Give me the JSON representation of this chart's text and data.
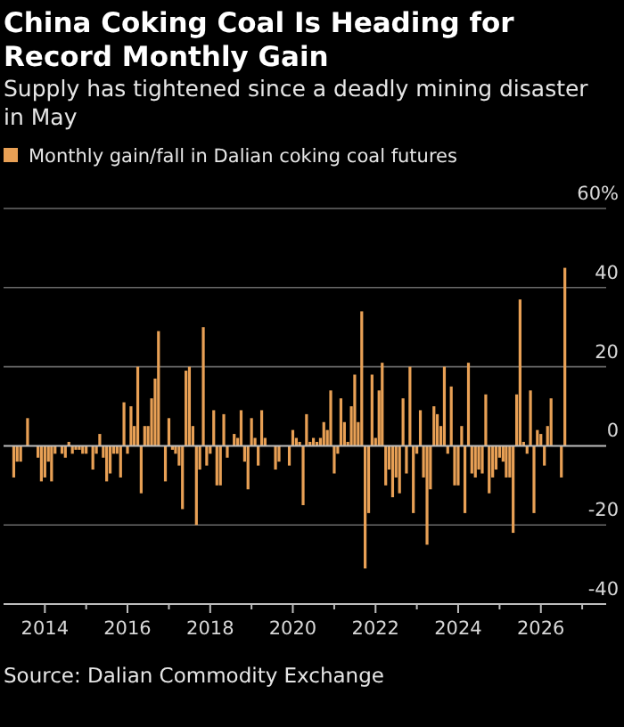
{
  "chart_data": {
    "type": "bar",
    "title": "China Coking Coal Is Heading for Record Monthly Gain",
    "subtitle": "Supply has tightened since a deadly mining disaster in May",
    "x": [
      "2013-04",
      "2013-05",
      "2013-06",
      "2013-07",
      "2013-08",
      "2013-09",
      "2013-10",
      "2013-11",
      "2013-12",
      "2014-01",
      "2014-02",
      "2014-03",
      "2014-04",
      "2014-05",
      "2014-06",
      "2014-07",
      "2014-08",
      "2014-09",
      "2014-10",
      "2014-11",
      "2014-12",
      "2015-01",
      "2015-02",
      "2015-03",
      "2015-04",
      "2015-05",
      "2015-06",
      "2015-07",
      "2015-08",
      "2015-09",
      "2015-10",
      "2015-11",
      "2015-12",
      "2016-01",
      "2016-02",
      "2016-03",
      "2016-04",
      "2016-05",
      "2016-06",
      "2016-07",
      "2016-08",
      "2016-09",
      "2016-10",
      "2016-11",
      "2016-12",
      "2017-01",
      "2017-02",
      "2017-03",
      "2017-04",
      "2017-05",
      "2017-06",
      "2017-07",
      "2017-08",
      "2017-09",
      "2017-10",
      "2017-11",
      "2017-12",
      "2018-01",
      "2018-02",
      "2018-03",
      "2018-04",
      "2018-05",
      "2018-06",
      "2018-07",
      "2018-08",
      "2018-09",
      "2018-10",
      "2018-11",
      "2018-12",
      "2019-01",
      "2019-02",
      "2019-03",
      "2019-04",
      "2019-05",
      "2019-06",
      "2019-07",
      "2019-08",
      "2019-09",
      "2019-10",
      "2019-11",
      "2019-12",
      "2020-01",
      "2020-02",
      "2020-03",
      "2020-04",
      "2020-05",
      "2020-06",
      "2020-07",
      "2020-08",
      "2020-09",
      "2020-10",
      "2020-11",
      "2020-12",
      "2021-01",
      "2021-02",
      "2021-03",
      "2021-04",
      "2021-05",
      "2021-06",
      "2021-07",
      "2021-08",
      "2021-09",
      "2021-10",
      "2021-11",
      "2021-12",
      "2022-01",
      "2022-02",
      "2022-03",
      "2022-04",
      "2022-05",
      "2022-06",
      "2022-07",
      "2022-08",
      "2022-09",
      "2022-10",
      "2022-11",
      "2022-12",
      "2023-01",
      "2023-02",
      "2023-03",
      "2023-04",
      "2023-05",
      "2023-06",
      "2023-07",
      "2023-08",
      "2023-09",
      "2023-10",
      "2023-11",
      "2023-12",
      "2024-01",
      "2024-02",
      "2024-03",
      "2024-04",
      "2024-05",
      "2024-06",
      "2024-07",
      "2024-08",
      "2024-09",
      "2024-10",
      "2024-11",
      "2024-12",
      "2025-01",
      "2025-02",
      "2025-03",
      "2025-04",
      "2025-05",
      "2025-06",
      "2025-07",
      "2025-08",
      "2025-09",
      "2025-10",
      "2025-11",
      "2025-12",
      "2026-01",
      "2026-02",
      "2026-03",
      "2026-04",
      "2026-05",
      "2026-06",
      "2026-07",
      "2026-08"
    ],
    "series": [
      {
        "name": "Monthly gain/fall in Dalian coking coal futures",
        "color": "#e8a055",
        "values": [
          -8,
          -4,
          -4,
          0,
          7,
          0,
          0,
          -3,
          -9,
          -8,
          -4,
          -9,
          -2,
          0,
          -2,
          -3,
          1,
          -2,
          -1,
          -1,
          -2,
          -2,
          0,
          -6,
          -2,
          3,
          -3,
          -9,
          -7,
          -2,
          -2,
          -8,
          11,
          -2,
          10,
          5,
          20,
          -12,
          5,
          5,
          12,
          17,
          29,
          0,
          -9,
          7,
          -1,
          -2,
          -5,
          -16,
          19,
          20,
          5,
          -20,
          -6,
          30,
          -5,
          -2,
          9,
          -10,
          -10,
          8,
          -3,
          0,
          3,
          2,
          9,
          -4,
          -11,
          7,
          2,
          -5,
          9,
          2,
          0,
          0,
          -6,
          -4,
          0,
          0,
          -5,
          4,
          2,
          1,
          -15,
          8,
          1,
          2,
          1,
          2,
          6,
          4,
          14,
          -7,
          -2,
          12,
          6,
          1,
          10,
          18,
          6,
          34,
          -31,
          -17,
          18,
          2,
          14,
          21,
          -10,
          -6,
          -13,
          -8,
          -12,
          12,
          -7,
          20,
          -17,
          -2,
          9,
          -8,
          -25,
          -11,
          10,
          8,
          5,
          20,
          -2,
          15,
          -10,
          -10,
          5,
          -17,
          21,
          -7,
          -8,
          -6,
          -7,
          13,
          -12,
          -8,
          -6,
          -3,
          -4,
          -8,
          -8,
          -22,
          13,
          37,
          1,
          -2,
          14,
          -17,
          4,
          3,
          -5,
          5,
          12,
          0,
          0,
          -8,
          45
        ]
      }
    ],
    "xlim": [
      "2013-01",
      "2027-08"
    ],
    "xticks": [
      {
        "value": "2014",
        "label": "2014"
      },
      {
        "value": "2015",
        "label": null
      },
      {
        "value": "2016",
        "label": "2016"
      },
      {
        "value": "2017",
        "label": null
      },
      {
        "value": "2018",
        "label": "2018"
      },
      {
        "value": "2019",
        "label": null
      },
      {
        "value": "2020",
        "label": "2020"
      },
      {
        "value": "2021",
        "label": null
      },
      {
        "value": "2022",
        "label": "2022"
      },
      {
        "value": "2023",
        "label": null
      },
      {
        "value": "2024",
        "label": "2024"
      },
      {
        "value": "2025",
        "label": null
      },
      {
        "value": "2026",
        "label": "2026"
      },
      {
        "value": "2027",
        "label": null
      }
    ],
    "ylim": [
      -40,
      60
    ],
    "yticks": [
      -40,
      -20,
      0,
      20,
      40,
      {
        "value": 60,
        "label": "60%"
      }
    ],
    "grid": "y",
    "legend": "top left",
    "annotations": [
      "Source: Dalian Commodity Exchange"
    ]
  }
}
